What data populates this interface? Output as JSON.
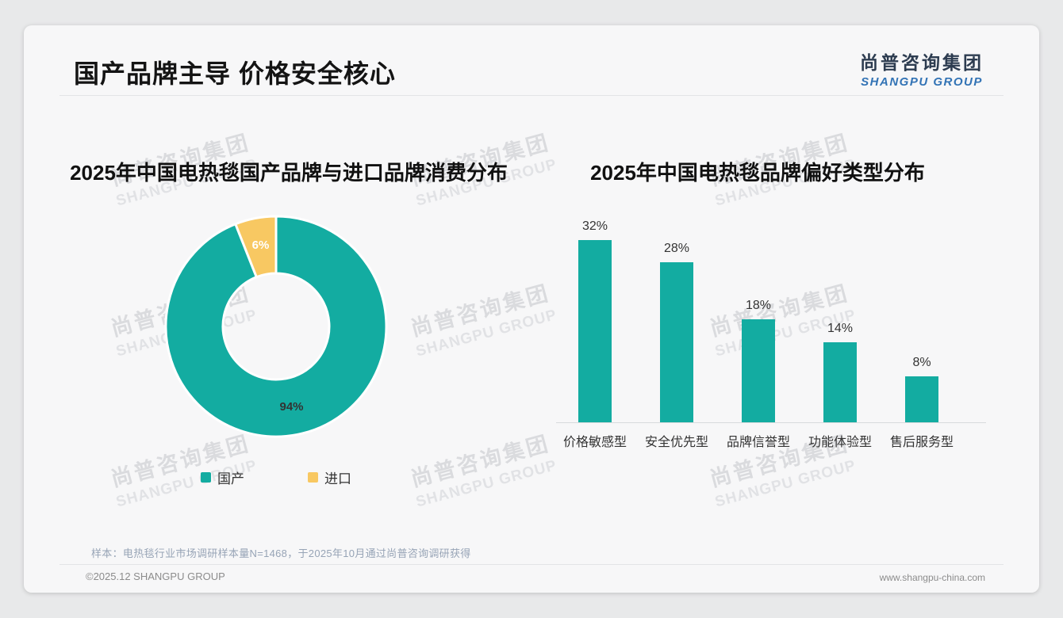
{
  "page": {
    "title": "国产品牌主导 价格安全核心",
    "logo": {
      "cjk": "尚普咨询集团",
      "latin": "SHANGPU GROUP"
    },
    "watermark": {
      "line1": "尚普咨询集团",
      "line2": "SHANGPU GROUP"
    },
    "footnote": "样本：电热毯行业市场调研样本量N=1468，于2025年10月通过尚普咨询调研获得",
    "footer_left": "©2025.12 SHANGPU GROUP",
    "footer_right": "www.shangpu-china.com"
  },
  "colors": {
    "teal": "#13aca1",
    "yellow": "#f8c862",
    "title_text": "#141414",
    "label_dark": "#333333",
    "label_white": "#ffffff",
    "logo_navy": "#2d3c50",
    "logo_blue": "#3273b5"
  },
  "chart_data": [
    {
      "type": "pie",
      "donut": true,
      "title": "2025年中国电热毯国产品牌与进口品牌消费分布",
      "labels": [
        "国产",
        "进口"
      ],
      "values": [
        94,
        6
      ],
      "value_labels": [
        "94%",
        "6%"
      ],
      "slice_colors": [
        "#13aca1",
        "#f8c862"
      ],
      "slice_label_colors": [
        "#333333",
        "#ffffff"
      ],
      "legend_position": "bottom",
      "start_angle_deg": 0
    },
    {
      "type": "bar",
      "title": "2025年中国电热毯品牌偏好类型分布",
      "categories": [
        "价格敏感型",
        "安全优先型",
        "品牌信誉型",
        "功能体验型",
        "售后服务型"
      ],
      "values": [
        32,
        28,
        18,
        14,
        8
      ],
      "value_labels": [
        "32%",
        "28%",
        "18%",
        "14%",
        "8%"
      ],
      "bar_color": "#13aca1",
      "xlabel": "",
      "ylabel": "",
      "ylim": [
        0,
        35
      ],
      "grid": false,
      "legend_position": "none"
    }
  ]
}
